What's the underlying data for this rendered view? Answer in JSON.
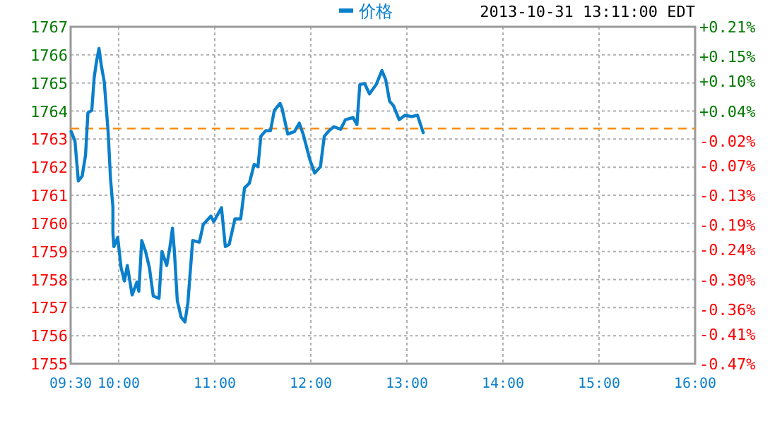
{
  "chart_data": {
    "type": "line",
    "annotations": [
      "2013-10-31 13:11:00 EDT"
    ],
    "x": [
      9.506,
      9.545,
      9.58,
      9.62,
      9.655,
      9.68,
      9.72,
      9.745,
      9.77,
      9.795,
      9.82,
      9.85,
      9.89,
      9.915,
      9.94,
      9.94,
      9.95,
      9.99,
      10.025,
      10.06,
      10.09,
      10.14,
      10.19,
      10.21,
      10.24,
      10.28,
      10.32,
      10.36,
      10.42,
      10.45,
      10.5,
      10.53,
      10.56,
      10.58,
      10.61,
      10.65,
      10.69,
      10.72,
      10.77,
      10.84,
      10.88,
      10.96,
      10.99,
      11.07,
      11.11,
      11.15,
      11.21,
      11.27,
      11.31,
      11.36,
      11.41,
      11.45,
      11.48,
      11.53,
      11.58,
      11.62,
      11.68,
      11.7,
      11.76,
      11.83,
      11.88,
      11.92,
      11.99,
      12.04,
      12.1,
      12.14,
      12.19,
      12.24,
      12.31,
      12.36,
      12.44,
      12.48,
      12.51,
      12.56,
      12.61,
      12.68,
      12.74,
      12.78,
      12.82,
      12.86,
      12.92,
      12.98,
      13.05,
      13.11,
      13.17
    ],
    "series": [
      {
        "name": "价格",
        "color": "#0a7fcb",
        "values": [
          1763.27,
          1762.93,
          1761.51,
          1761.68,
          1762.43,
          1763.94,
          1764.02,
          1765.19,
          1765.78,
          1766.23,
          1765.61,
          1765.03,
          1763.27,
          1761.59,
          1760.59,
          1759.67,
          1759.17,
          1759.5,
          1758.42,
          1757.95,
          1758.5,
          1757.45,
          1757.91,
          1757.58,
          1759.39,
          1759.0,
          1758.42,
          1757.41,
          1757.33,
          1759.0,
          1758.5,
          1759.08,
          1759.83,
          1759.0,
          1757.25,
          1756.66,
          1756.49,
          1757.16,
          1759.39,
          1759.33,
          1759.96,
          1760.26,
          1760.06,
          1760.56,
          1759.17,
          1759.25,
          1760.16,
          1760.16,
          1761.26,
          1761.43,
          1762.1,
          1762.02,
          1763.1,
          1763.3,
          1763.3,
          1764.02,
          1764.27,
          1764.1,
          1763.18,
          1763.27,
          1763.57,
          1763.18,
          1762.27,
          1761.79,
          1762.02,
          1763.1,
          1763.3,
          1763.44,
          1763.35,
          1763.69,
          1763.77,
          1763.52,
          1764.94,
          1764.98,
          1764.61,
          1764.94,
          1765.44,
          1765.11,
          1764.35,
          1764.19,
          1763.69,
          1763.85,
          1763.8,
          1763.85,
          1763.23
        ]
      }
    ],
    "xlim": [
      9.5,
      16
    ],
    "xticks": [
      {
        "value": 9.5,
        "label": "09:30"
      },
      {
        "value": 10,
        "label": "10:00"
      },
      {
        "value": 11,
        "label": "11:00"
      },
      {
        "value": 12,
        "label": "12:00"
      },
      {
        "value": 13,
        "label": "13:00"
      },
      {
        "value": 14,
        "label": "14:00"
      },
      {
        "value": 15,
        "label": "15:00"
      },
      {
        "value": 16,
        "label": "16:00"
      }
    ],
    "ylim": [
      1755,
      1767
    ],
    "yticks": [
      1755,
      1756,
      1757,
      1758,
      1759,
      1760,
      1761,
      1762,
      1763,
      1764,
      1765,
      1766,
      1767
    ],
    "y2lim": [
      -0.47,
      0.21
    ],
    "y2ticks": [
      {
        "value": -0.47,
        "label": "-0.47%"
      },
      {
        "value": -0.41,
        "label": "-0.41%"
      },
      {
        "value": -0.36,
        "label": "-0.36%"
      },
      {
        "value": -0.3,
        "label": "-0.30%"
      },
      {
        "value": -0.24,
        "label": "-0.24%"
      },
      {
        "value": -0.19,
        "label": "-0.19%"
      },
      {
        "value": -0.13,
        "label": "-0.13%"
      },
      {
        "value": -0.07,
        "label": "-0.07%"
      },
      {
        "value": -0.02,
        "label": "-0.02%"
      },
      {
        "value": 0.04,
        "label": "+0.04%"
      },
      {
        "value": 0.1,
        "label": "+0.10%"
      },
      {
        "value": 0.15,
        "label": "+0.15%"
      },
      {
        "value": 0.21,
        "label": "+0.21%"
      }
    ],
    "ref_lines": [
      {
        "axis": "y",
        "value": 1763.38,
        "color": "#ff8c00",
        "line_style": "dashed"
      }
    ],
    "grid": true,
    "legend": "top"
  }
}
